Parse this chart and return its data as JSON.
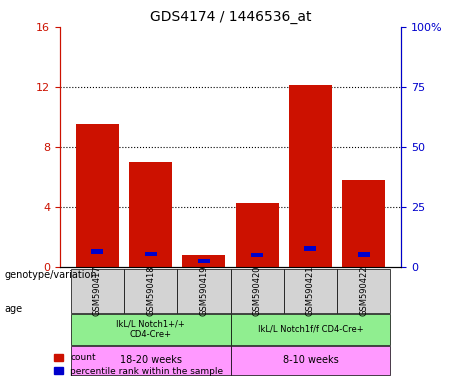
{
  "title": "GDS4174 / 1446536_at",
  "samples": [
    "GSM590417",
    "GSM590418",
    "GSM590419",
    "GSM590420",
    "GSM590421",
    "GSM590422"
  ],
  "count_values": [
    9.5,
    7.0,
    0.8,
    4.3,
    12.1,
    5.8
  ],
  "percentile_values": [
    6.5,
    5.5,
    2.5,
    5.0,
    7.8,
    5.2
  ],
  "count_color": "#cc1100",
  "percentile_color": "#0000cc",
  "ylim_left": [
    0,
    16
  ],
  "ylim_right": [
    0,
    100
  ],
  "yticks_left": [
    0,
    4,
    8,
    12,
    16
  ],
  "ytick_labels_left": [
    "0",
    "4",
    "8",
    "12",
    "16"
  ],
  "yticks_right": [
    0,
    25,
    50,
    75,
    100
  ],
  "ytick_labels_right": [
    "0",
    "25",
    "50",
    "75",
    "100%"
  ],
  "bar_width": 0.45,
  "sample_bg_color": "#d3d3d3",
  "genotype_bg_color1": "#90ee90",
  "genotype_bg_color2": "#90ee90",
  "age_bg_color": "#ff99ff",
  "genotype_labels": [
    "IkL/L Notch1+/+\nCD4-Cre+",
    "IkL/L Notch1f/f CD4-Cre+"
  ],
  "age_labels": [
    "18-20 weeks",
    "8-10 weeks"
  ],
  "group1_indices": [
    0,
    1,
    2
  ],
  "group2_indices": [
    3,
    4,
    5
  ],
  "left_label": "genotype/variation",
  "age_label": "age",
  "legend_count": "count",
  "legend_percentile": "percentile rank within the sample",
  "arrow_color": "#999999"
}
